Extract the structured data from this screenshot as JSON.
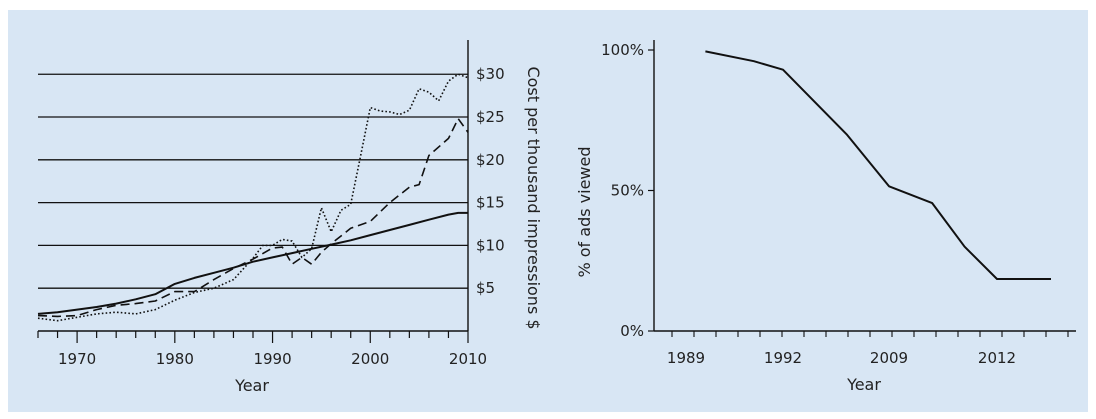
{
  "chart_data": [
    {
      "type": "line",
      "title": "",
      "xlabel": "Year",
      "ylabel": "Cost per thousand impressions $",
      "xlim": [
        1966,
        2010
      ],
      "ylim": [
        0,
        34
      ],
      "grid": true,
      "x_ticks": [
        "1970",
        "1980",
        "1990",
        "2000",
        "2010"
      ],
      "x_tick_values": [
        1970,
        1980,
        1990,
        2000,
        2010
      ],
      "y_ticks": [
        "$5",
        "$10",
        "$15",
        "$20",
        "$25",
        "$30"
      ],
      "y_tick_values": [
        5,
        10,
        15,
        20,
        25,
        30
      ],
      "series": [
        {
          "style": "solid",
          "x": [
            1966,
            1968,
            1970,
            1972,
            1974,
            1976,
            1978,
            1980,
            1982,
            1984,
            1986,
            1988,
            1990,
            1992,
            1994,
            1996,
            1998,
            2000,
            2002,
            2004,
            2006,
            2008,
            2009,
            2010
          ],
          "y": [
            2.0,
            2.2,
            2.5,
            2.8,
            3.2,
            3.7,
            4.3,
            5.5,
            6.2,
            6.8,
            7.4,
            8.1,
            8.6,
            9.1,
            9.6,
            10.1,
            10.6,
            11.2,
            11.8,
            12.4,
            13.0,
            13.6,
            13.8,
            13.8
          ]
        },
        {
          "style": "dashed",
          "x": [
            1966,
            1968,
            1970,
            1972,
            1974,
            1976,
            1978,
            1980,
            1982,
            1984,
            1986,
            1988,
            1990,
            1991,
            1992,
            1993,
            1994,
            1995,
            1996,
            1998,
            2000,
            2002,
            2004,
            2005,
            2006,
            2008,
            2009,
            2010
          ],
          "y": [
            1.8,
            1.7,
            1.8,
            2.5,
            3.0,
            3.2,
            3.5,
            4.6,
            4.6,
            6.0,
            7.3,
            8.4,
            9.7,
            9.8,
            7.8,
            8.6,
            7.8,
            9.2,
            10.2,
            12.0,
            12.8,
            15.0,
            16.8,
            17.1,
            20.5,
            22.5,
            24.8,
            23.2
          ]
        },
        {
          "style": "dotted",
          "x": [
            1966,
            1968,
            1970,
            1972,
            1974,
            1976,
            1978,
            1980,
            1982,
            1984,
            1986,
            1988,
            1989,
            1990,
            1991,
            1992,
            1993,
            1994,
            1995,
            1996,
            1997,
            1998,
            1999,
            2000,
            2001,
            2002,
            2003,
            2004,
            2005,
            2006,
            2007,
            2008,
            2009,
            2010
          ],
          "y": [
            1.5,
            1.2,
            1.6,
            2.0,
            2.2,
            2.0,
            2.5,
            3.6,
            4.5,
            5.0,
            6.0,
            8.5,
            10.0,
            10.0,
            10.7,
            10.5,
            8.6,
            9.6,
            14.4,
            11.6,
            14.1,
            14.8,
            20.4,
            26.1,
            25.7,
            25.6,
            25.3,
            25.8,
            28.3,
            27.9,
            26.9,
            29.2,
            30.0,
            29.6
          ]
        }
      ]
    },
    {
      "type": "line",
      "title": "",
      "xlabel": "Year",
      "ylabel": "% of ads viewed",
      "ylim": [
        0,
        100
      ],
      "categories": [
        "1989",
        "1992",
        "2009",
        "2012"
      ],
      "y_ticks": [
        "0%",
        "50%",
        "100%"
      ],
      "y_tick_values": [
        0,
        50,
        100
      ],
      "series": [
        {
          "style": "solid",
          "x": [
            0.2,
            0.7,
            1.0,
            1.6,
            2.0,
            2.4,
            2.7,
            3.0,
            3.5
          ],
          "y": [
            99.5,
            96.0,
            93.0,
            70.0,
            51.5,
            45.5,
            30.0,
            18.5,
            18.5
          ]
        }
      ]
    }
  ]
}
